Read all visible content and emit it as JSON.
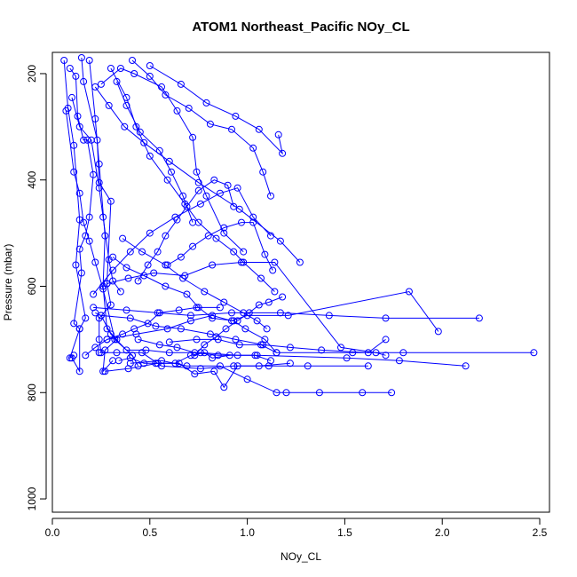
{
  "chart_data": {
    "type": "line",
    "title": "ATOM1 Northeast_Pacific NOy_CL",
    "xlabel": "NOy_CL",
    "ylabel": "Pressure (mbar)",
    "xlim": [
      0,
      2.55
    ],
    "ylim": [
      1025,
      160
    ],
    "y_reversed": true,
    "x_ticks": [
      0.0,
      0.5,
      1.0,
      1.5,
      2.0,
      2.5
    ],
    "x_tick_labels": [
      "0.0",
      "0.5",
      "1.0",
      "1.5",
      "2.0",
      "2.5"
    ],
    "y_ticks": [
      200,
      400,
      600,
      800,
      1000
    ],
    "y_tick_labels": [
      "200",
      "400",
      "600",
      "800",
      "1000"
    ],
    "grid": false,
    "legend": "none",
    "series_color": "#0000ff",
    "series": [
      {
        "x": [
          0.06,
          0.08,
          0.11,
          0.14,
          0.12,
          0.17,
          0.14,
          0.09,
          0.11
        ],
        "y": [
          175,
          265,
          335,
          475,
          560,
          660,
          680,
          735,
          730
        ]
      },
      {
        "x": [
          0.09,
          0.12,
          0.13,
          0.16,
          0.18,
          0.21,
          0.19,
          0.17,
          0.14,
          0.15,
          0.11,
          0.14,
          0.14,
          0.1
        ],
        "y": [
          190,
          205,
          280,
          325,
          325,
          390,
          470,
          505,
          530,
          575,
          670,
          680,
          760,
          735
        ]
      },
      {
        "x": [
          0.1,
          0.14,
          0.2,
          0.24,
          0.26,
          0.29,
          0.31,
          0.35
        ],
        "y": [
          245,
          300,
          325,
          415,
          470,
          550,
          590,
          610
        ]
      },
      {
        "x": [
          0.15,
          0.16,
          0.23,
          0.24,
          0.3,
          0.28,
          0.3,
          0.24,
          0.24,
          0.25
        ],
        "y": [
          170,
          215,
          325,
          405,
          440,
          595,
          635,
          660,
          700,
          725
        ]
      },
      {
        "x": [
          0.19,
          0.22,
          0.24,
          0.27,
          0.26,
          0.28,
          0.33,
          0.27,
          0.26,
          0.31
        ],
        "y": [
          175,
          285,
          370,
          505,
          600,
          680,
          700,
          720,
          760,
          740
        ]
      },
      {
        "x": [
          0.07,
          0.11,
          0.14,
          0.16,
          0.19,
          0.22,
          0.26,
          0.32,
          0.41,
          0.44
        ],
        "y": [
          270,
          385,
          425,
          480,
          515,
          555,
          605,
          700,
          730,
          750
        ]
      },
      {
        "x": [
          0.25,
          0.35,
          0.42,
          0.56,
          0.64,
          0.72,
          0.74,
          0.79,
          0.88,
          0.98
        ],
        "y": [
          220,
          190,
          200,
          225,
          270,
          320,
          385,
          430,
          500,
          535
        ]
      },
      {
        "x": [
          0.41,
          0.5,
          0.58,
          0.7,
          0.81,
          0.92,
          1.03,
          1.08,
          1.12
        ],
        "y": [
          175,
          205,
          240,
          265,
          295,
          305,
          340,
          385,
          430
        ]
      },
      {
        "x": [
          0.5,
          0.66,
          0.79,
          0.94,
          1.06,
          1.18,
          1.16
        ],
        "y": [
          185,
          220,
          255,
          280,
          305,
          350,
          315
        ]
      },
      {
        "x": [
          0.3,
          0.38,
          0.43,
          0.5,
          0.59,
          0.68,
          0.75,
          0.84,
          0.93,
          0.98,
          1.07,
          1.14
        ],
        "y": [
          190,
          245,
          300,
          355,
          400,
          445,
          480,
          510,
          535,
          555,
          585,
          610
        ]
      },
      {
        "x": [
          0.22,
          0.29,
          0.37,
          0.47,
          0.6,
          0.75,
          0.96,
          1.17,
          1.27
        ],
        "y": [
          225,
          260,
          300,
          330,
          365,
          405,
          455,
          515,
          555
        ]
      },
      {
        "x": [
          0.33,
          0.38,
          0.45,
          0.55,
          0.61,
          0.67,
          0.72
        ],
        "y": [
          215,
          260,
          310,
          345,
          385,
          430,
          480
        ]
      },
      {
        "x": [
          0.36,
          0.46,
          0.58,
          0.67,
          0.78,
          0.88,
          0.98,
          1.05,
          1.1
        ],
        "y": [
          510,
          535,
          560,
          585,
          610,
          630,
          650,
          665,
          680
        ]
      },
      {
        "x": [
          0.31,
          0.38,
          0.47,
          0.58,
          0.69,
          0.75,
          0.82,
          0.93,
          0.99,
          1.09,
          1.15
        ],
        "y": [
          545,
          565,
          580,
          600,
          615,
          640,
          660,
          665,
          680,
          700,
          725
        ]
      },
      {
        "x": [
          0.22,
          0.25,
          0.3,
          0.38,
          0.48,
          0.6,
          0.76,
          0.95,
          1.04,
          1.12
        ],
        "y": [
          650,
          655,
          690,
          720,
          720,
          725,
          725,
          730,
          730,
          740
        ]
      },
      {
        "x": [
          0.24,
          0.33,
          0.46,
          0.56,
          0.76,
          0.93,
          1.11,
          1.31,
          1.62
        ],
        "y": [
          725,
          725,
          725,
          750,
          755,
          750,
          750,
          750,
          750
        ]
      },
      {
        "x": [
          0.4,
          0.56,
          0.69,
          0.86,
          1.0,
          1.15,
          1.2,
          1.37,
          1.59,
          1.74
        ],
        "y": [
          745,
          740,
          750,
          750,
          775,
          800,
          800,
          800,
          800,
          800
        ]
      },
      {
        "x": [
          0.27,
          0.39,
          0.54,
          0.65,
          0.73,
          0.83,
          0.88,
          0.95,
          1.06,
          1.22
        ],
        "y": [
          760,
          755,
          745,
          745,
          765,
          760,
          790,
          750,
          750,
          745
        ]
      },
      {
        "x": [
          0.44,
          0.55,
          0.64,
          0.73,
          0.85,
          1.05,
          1.51,
          1.78,
          2.12
        ],
        "y": [
          700,
          710,
          715,
          725,
          730,
          730,
          735,
          740,
          750
        ]
      },
      {
        "x": [
          0.28,
          0.43,
          0.59,
          0.71,
          0.82,
          0.92,
          1.0,
          1.21,
          1.83,
          1.98
        ],
        "y": [
          700,
          690,
          680,
          665,
          655,
          665,
          655,
          655,
          610,
          685
        ]
      },
      {
        "x": [
          0.25,
          0.4,
          0.53,
          0.66,
          0.81,
          0.94,
          1.08,
          1.22,
          1.38,
          1.62,
          1.71
        ],
        "y": [
          655,
          660,
          675,
          680,
          690,
          700,
          710,
          715,
          720,
          725,
          700
        ]
      },
      {
        "x": [
          0.21,
          0.38,
          0.54,
          0.71,
          0.92,
          1.17,
          1.42,
          1.71,
          2.19
        ],
        "y": [
          640,
          645,
          650,
          655,
          650,
          650,
          655,
          660,
          660
        ]
      },
      {
        "x": [
          0.6,
          0.74,
          0.85,
          0.96,
          1.07,
          1.15,
          1.54,
          1.8,
          2.47
        ],
        "y": [
          705,
          700,
          700,
          710,
          710,
          725,
          725,
          725,
          725
        ]
      },
      {
        "x": [
          0.28,
          0.39,
          0.52,
          0.68,
          0.82,
          0.97,
          1.14,
          1.48,
          1.66,
          1.71
        ],
        "y": [
          595,
          585,
          575,
          580,
          560,
          555,
          555,
          715,
          725,
          730
        ]
      },
      {
        "x": [
          0.21,
          0.31,
          0.4,
          0.5,
          0.63,
          0.76,
          0.86,
          0.95,
          1.03,
          1.12
        ],
        "y": [
          615,
          570,
          535,
          500,
          470,
          445,
          425,
          415,
          470,
          505
        ]
      },
      {
        "x": [
          0.44,
          0.49,
          0.54,
          0.58,
          0.64,
          0.69,
          0.75,
          0.83,
          0.9,
          0.93
        ],
        "y": [
          590,
          560,
          535,
          505,
          475,
          450,
          420,
          400,
          410,
          450
        ]
      },
      {
        "x": [
          0.59,
          0.66,
          0.72,
          0.8,
          0.88,
          0.97,
          1.03,
          1.09,
          1.13
        ],
        "y": [
          560,
          545,
          525,
          505,
          490,
          480,
          480,
          540,
          570
        ]
      },
      {
        "x": [
          0.17,
          0.22,
          0.28,
          0.36,
          0.42,
          0.49,
          0.55,
          0.65,
          0.74,
          0.86
        ],
        "y": [
          730,
          715,
          700,
          690,
          680,
          670,
          650,
          645,
          640,
          640
        ]
      },
      {
        "x": [
          0.73,
          0.78,
          0.84,
          0.89,
          0.95,
          1.01,
          1.06,
          1.11,
          1.18
        ],
        "y": [
          730,
          710,
          695,
          680,
          665,
          650,
          635,
          630,
          620
        ]
      },
      {
        "x": [
          0.34,
          0.4,
          0.47,
          0.53,
          0.63,
          0.71,
          0.78,
          0.82,
          0.91
        ],
        "y": [
          740,
          735,
          745,
          745,
          745,
          730,
          725,
          735,
          730
        ]
      }
    ]
  }
}
